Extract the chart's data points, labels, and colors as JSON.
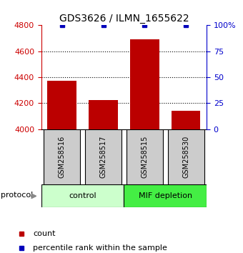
{
  "title": "GDS3626 / ILMN_1655622",
  "samples": [
    "GSM258516",
    "GSM258517",
    "GSM258515",
    "GSM258530"
  ],
  "bar_values": [
    4370,
    4225,
    4690,
    4140
  ],
  "percentile_values": [
    100,
    100,
    100,
    100
  ],
  "ylim_left": [
    4000,
    4800
  ],
  "ylim_right": [
    0,
    100
  ],
  "yticks_left": [
    4000,
    4200,
    4400,
    4600,
    4800
  ],
  "yticks_right": [
    0,
    25,
    50,
    75,
    100
  ],
  "ytick_labels_right": [
    "0",
    "25",
    "50",
    "75",
    "100%"
  ],
  "bar_color": "#bb0000",
  "percentile_color": "#0000bb",
  "control_color": "#ccffcc",
  "mif_color": "#44ee44",
  "protocol_label": "protocol",
  "legend_count_label": "count",
  "legend_pct_label": "percentile rank within the sample",
  "bar_width": 0.7,
  "left_tick_color": "#cc0000",
  "right_tick_color": "#0000cc",
  "title_fontsize": 10,
  "tick_fontsize": 8,
  "label_fontsize": 7,
  "legend_fontsize": 8
}
